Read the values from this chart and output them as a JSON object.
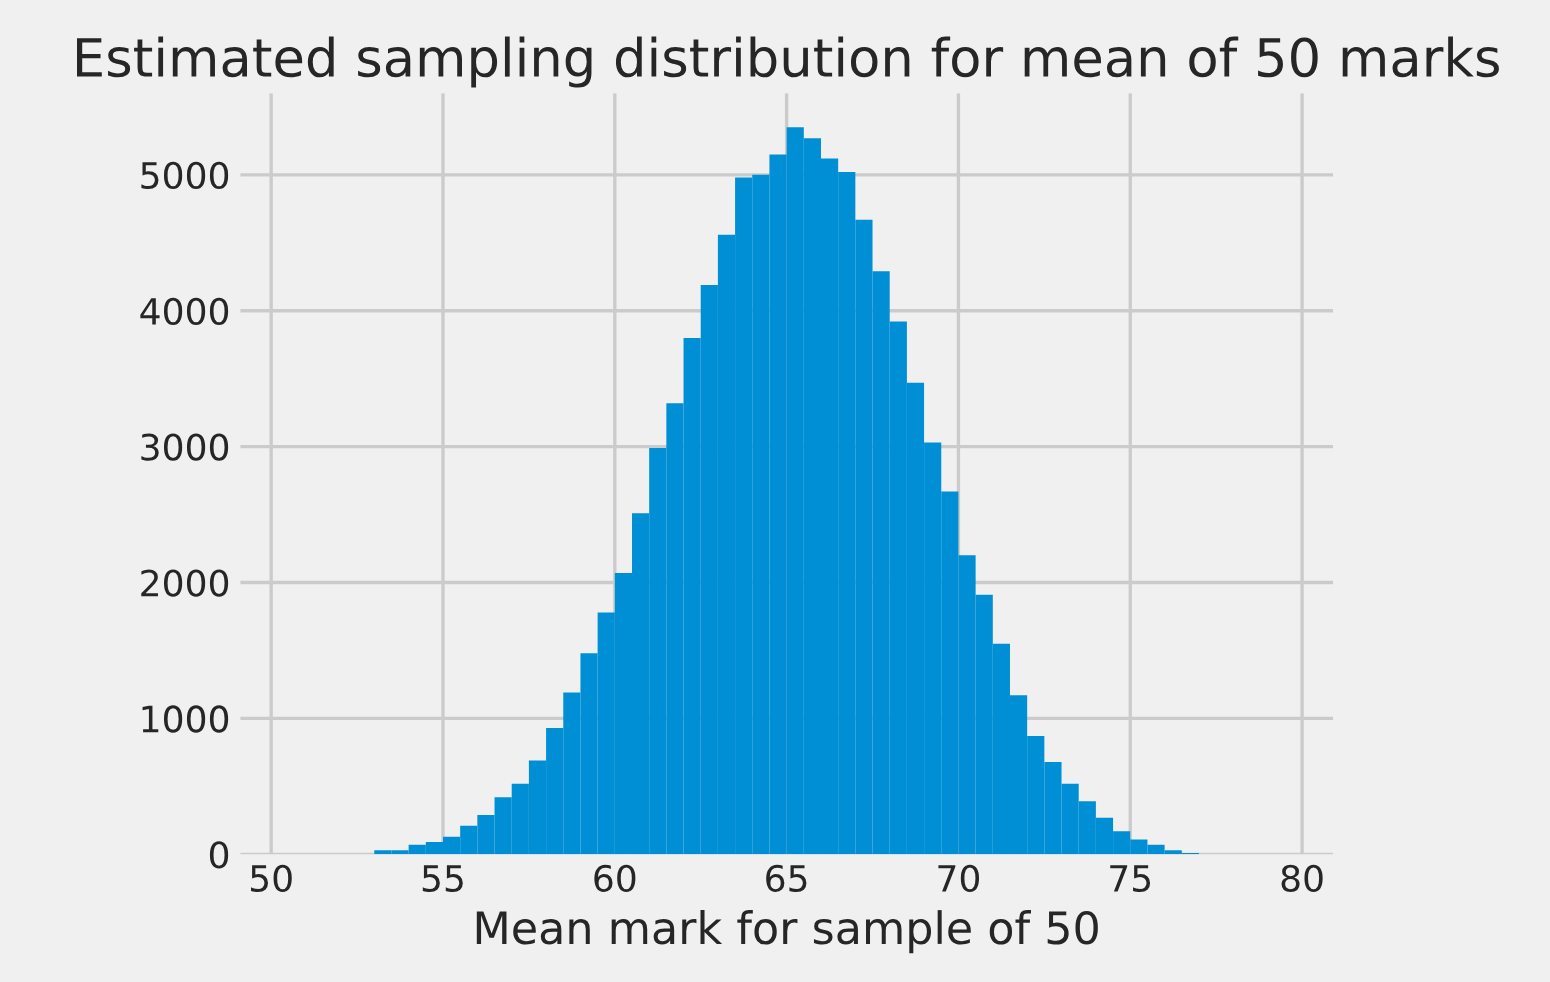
{
  "chart_data": {
    "type": "histogram",
    "title": "Estimated sampling distribution for mean of 50 marks",
    "xlabel": "Mean mark for sample of 50",
    "bins": [
      53.0,
      53.5,
      54.0,
      54.5,
      55.0,
      55.5,
      56.0,
      56.5,
      57.0,
      57.5,
      58.0,
      58.5,
      59.0,
      59.5,
      60.0,
      60.5,
      61.0,
      61.5,
      62.0,
      62.5,
      63.0,
      63.5,
      64.0,
      64.5,
      65.0,
      65.5,
      66.0,
      66.5,
      67.0,
      67.5,
      68.0,
      68.5,
      69.0,
      69.5,
      70.0,
      70.5,
      71.0,
      71.5,
      72.0,
      72.5,
      73.0,
      73.5,
      74.0,
      74.5,
      75.0,
      75.5,
      76.0,
      76.5,
      77.0
    ],
    "values": [
      30,
      30,
      70,
      90,
      130,
      210,
      290,
      420,
      520,
      690,
      930,
      1190,
      1480,
      1780,
      2070,
      2510,
      2990,
      3320,
      3800,
      4190,
      4560,
      4980,
      5000,
      5150,
      5350,
      5270,
      5120,
      5020,
      4670,
      4290,
      3920,
      3470,
      3030,
      2670,
      2200,
      1910,
      1550,
      1170,
      870,
      680,
      520,
      390,
      270,
      170,
      110,
      70,
      30,
      10
    ],
    "color": "#008fd5",
    "xlim": [
      49.1,
      80.9
    ],
    "ylim": [
      0,
      5600
    ],
    "xticks": [
      50,
      55,
      60,
      65,
      70,
      75,
      80
    ],
    "yticks": [
      0,
      1000,
      2000,
      3000,
      4000,
      5000
    ],
    "grid": true
  }
}
